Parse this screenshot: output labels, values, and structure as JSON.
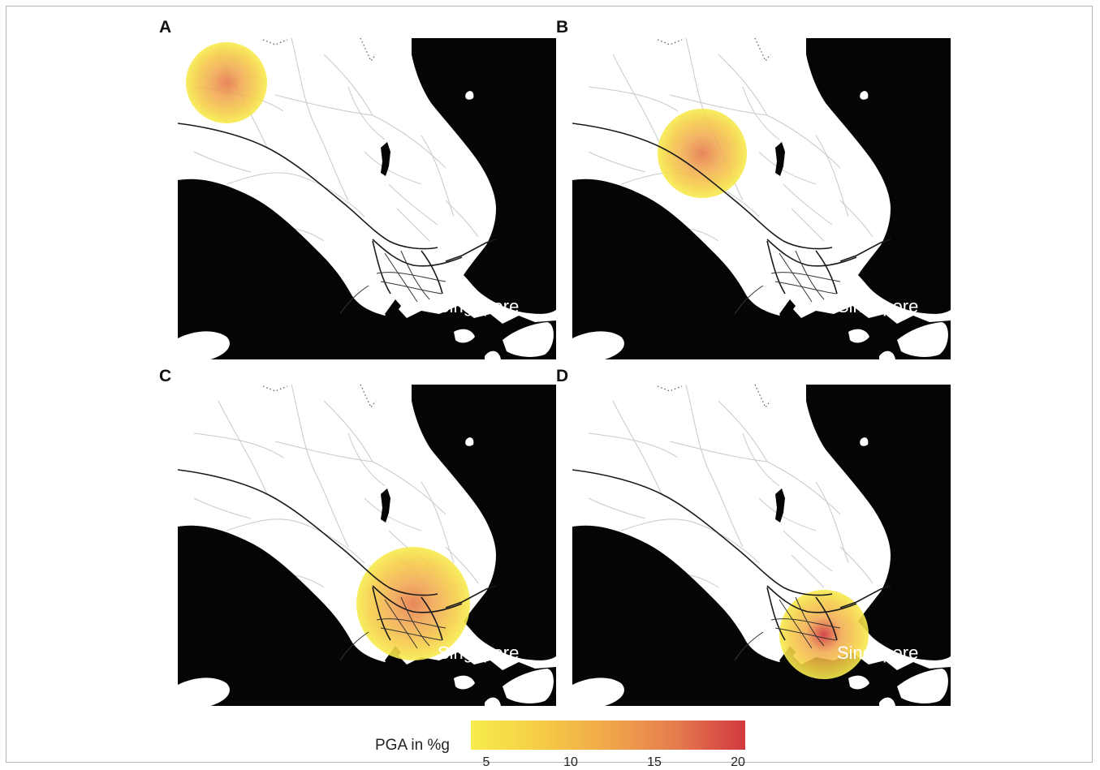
{
  "panels": [
    {
      "letter": "A",
      "label": "Singapore",
      "hotspot": {
        "cx": 60,
        "cy": 55,
        "r": 50,
        "peak": 0.45
      }
    },
    {
      "letter": "B",
      "label": "Singapore",
      "hotspot": {
        "cx": 160,
        "cy": 142,
        "r": 55,
        "peak": 0.5
      }
    },
    {
      "letter": "C",
      "label": "Singapore",
      "hotspot": {
        "cx": 290,
        "cy": 270,
        "r": 70,
        "peak": 0.65
      }
    },
    {
      "letter": "D",
      "label": "Singapore",
      "hotspot": {
        "cx": 310,
        "cy": 308,
        "r": 55,
        "peak": 0.9
      }
    }
  ],
  "legend": {
    "title": "PGA in %g",
    "ticks": [
      "5",
      "10",
      "15",
      "20"
    ],
    "colors": [
      "#f7ec4d",
      "#f5cd45",
      "#f1a74a",
      "#e57b4e",
      "#d2383f"
    ]
  }
}
